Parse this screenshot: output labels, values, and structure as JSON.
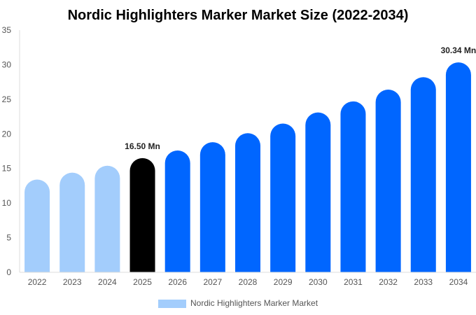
{
  "chart_data": {
    "type": "bar",
    "title": "Nordic Highlighters Marker Market Size (2022-2034)",
    "xlabel": "",
    "ylabel": "",
    "categories": [
      "2022",
      "2023",
      "2024",
      "2025",
      "2026",
      "2027",
      "2028",
      "2029",
      "2030",
      "2031",
      "2032",
      "2033",
      "2034"
    ],
    "series": [
      {
        "name": "Nordic Highlighters Marker Market",
        "values": [
          13.4,
          14.4,
          15.4,
          16.5,
          17.6,
          18.8,
          20.1,
          21.5,
          23.1,
          24.7,
          26.4,
          28.2,
          30.34
        ]
      }
    ],
    "data_labels": [
      {
        "category": "2025",
        "text": "16.50 Mn"
      },
      {
        "category": "2034",
        "text": "30.34 Mn"
      }
    ],
    "ylim": [
      0,
      35
    ],
    "yticks": [
      0,
      5,
      10,
      15,
      20,
      25,
      30,
      35
    ],
    "grid": false,
    "legend": "bottom",
    "colors": {
      "historical": "#a3cdfc",
      "current": "#000000",
      "forecast": "#0066ff"
    },
    "bar_color_groups": [
      "historical",
      "historical",
      "historical",
      "current",
      "forecast",
      "forecast",
      "forecast",
      "forecast",
      "forecast",
      "forecast",
      "forecast",
      "forecast",
      "forecast"
    ]
  }
}
